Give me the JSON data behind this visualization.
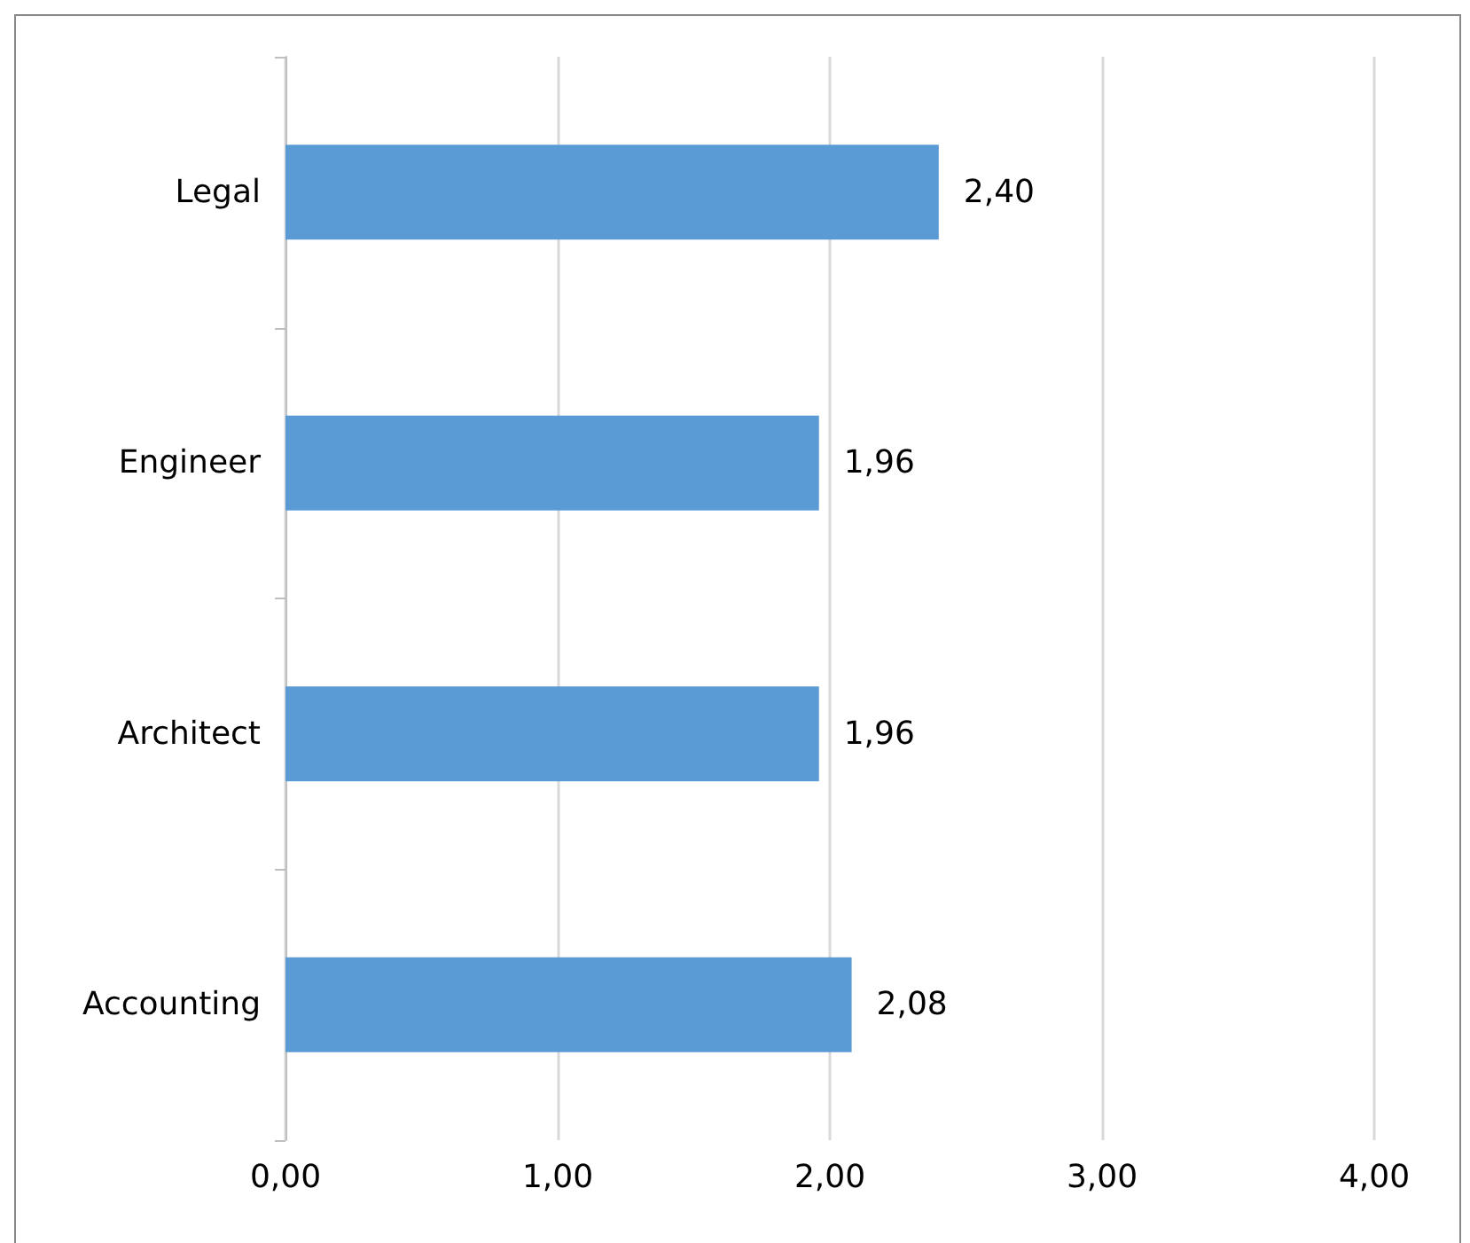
{
  "chart_data": {
    "type": "bar",
    "orientation": "horizontal",
    "categories": [
      "Legal",
      "Engineer",
      "Architect",
      "Accounting"
    ],
    "values": [
      2.4,
      1.96,
      1.96,
      2.08
    ],
    "color": "#5b9bd5",
    "value_labels": [
      "2,40",
      "1,96",
      "1,96",
      "2,08"
    ],
    "xlim": [
      0,
      4
    ],
    "xticks": [
      {
        "value": 0,
        "label": "0,00"
      },
      {
        "value": 1,
        "label": "1,00"
      },
      {
        "value": 2,
        "label": "2,00"
      },
      {
        "value": 3,
        "label": "3,00"
      },
      {
        "value": 4,
        "label": "4,00"
      }
    ],
    "grid": "x"
  }
}
